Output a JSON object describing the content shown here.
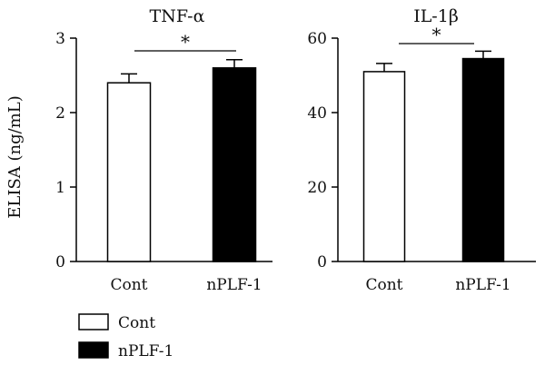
{
  "chart_data": [
    {
      "type": "bar",
      "title": "TNF-α",
      "ylabel": "ELISA (ng/mL)",
      "categories": [
        "Cont",
        "nPLF-1"
      ],
      "values": [
        2.4,
        2.6
      ],
      "errors": [
        0.12,
        0.11
      ],
      "ylim": [
        0,
        3
      ],
      "yticks": [
        0,
        1,
        2,
        3
      ],
      "colors": [
        "#ffffff",
        "#000000"
      ],
      "significance": "*"
    },
    {
      "type": "bar",
      "title": "IL-1β",
      "ylabel": "",
      "categories": [
        "Cont",
        "nPLF-1"
      ],
      "values": [
        51,
        54.5
      ],
      "errors": [
        2.2,
        2.0
      ],
      "ylim": [
        0,
        60
      ],
      "yticks": [
        0,
        20,
        40,
        60
      ],
      "colors": [
        "#ffffff",
        "#000000"
      ],
      "significance": "*"
    }
  ],
  "legend": {
    "position": "bottom-left",
    "items": [
      {
        "label": "Cont",
        "color": "#ffffff"
      },
      {
        "label": "nPLF-1",
        "color": "#000000"
      }
    ]
  }
}
